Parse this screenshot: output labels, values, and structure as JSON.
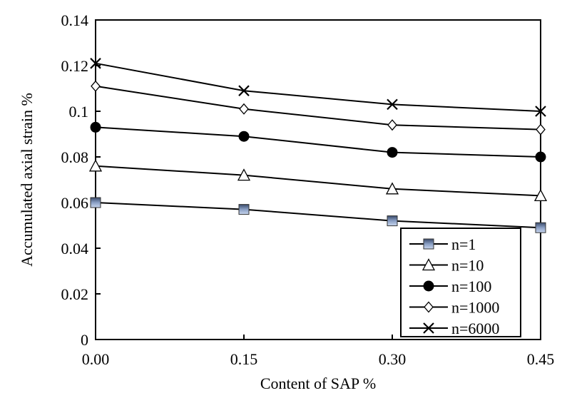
{
  "chart_data": {
    "type": "line",
    "title": "",
    "xlabel": "Content of SAP %",
    "ylabel": "Accumulated axial strain %",
    "x": [
      0.0,
      0.15,
      0.3,
      0.45
    ],
    "x_tick_labels": [
      "0.00",
      "0.15",
      "0.30",
      "0.45"
    ],
    "xlim": [
      0,
      0.45
    ],
    "ylim": [
      0,
      0.14
    ],
    "y_tick_labels": [
      "0",
      "0.02",
      "0.04",
      "0.06",
      "0.08",
      "0.1",
      "0.12",
      "0.14"
    ],
    "y_ticks": [
      0,
      0.02,
      0.04,
      0.06,
      0.08,
      0.1,
      0.12,
      0.14
    ],
    "grid": false,
    "legend_position": "bottom-right",
    "series": [
      {
        "name": "n=1",
        "marker": "square",
        "marker_color": "#8a9fc4",
        "values": [
          0.06,
          0.057,
          0.052,
          0.049
        ]
      },
      {
        "name": "n=10",
        "marker": "triangle-open",
        "values": [
          0.076,
          0.072,
          0.066,
          0.063
        ]
      },
      {
        "name": "n=100",
        "marker": "circle-filled",
        "values": [
          0.093,
          0.089,
          0.082,
          0.08
        ]
      },
      {
        "name": "n=1000",
        "marker": "diamond-open",
        "values": [
          0.111,
          0.101,
          0.094,
          0.092
        ]
      },
      {
        "name": "n=6000",
        "marker": "x",
        "values": [
          0.121,
          0.109,
          0.103,
          0.1
        ]
      }
    ]
  }
}
